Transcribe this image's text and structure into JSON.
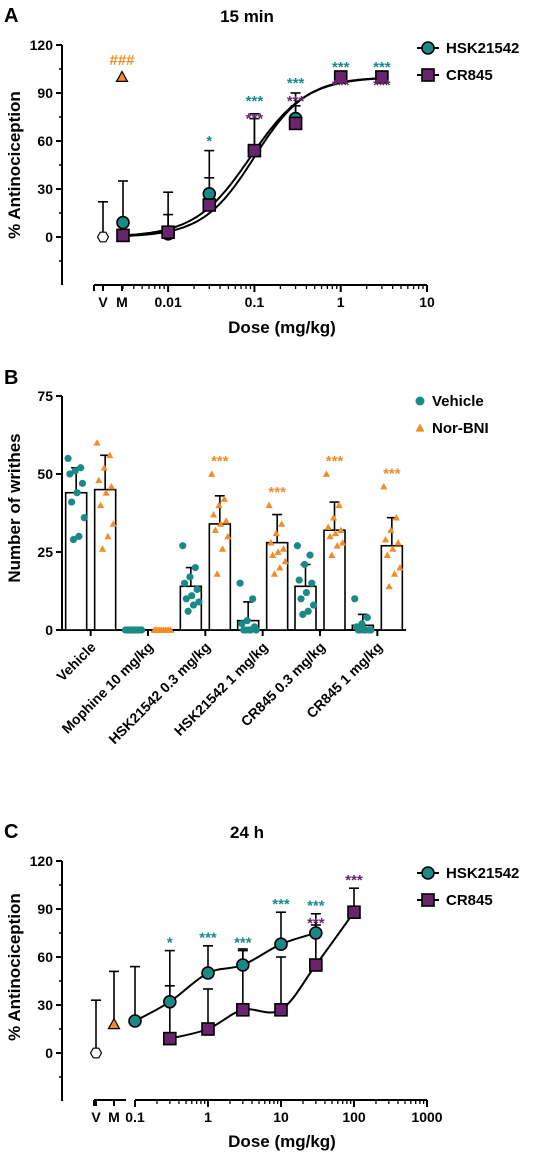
{
  "colors": {
    "teal": "#1b8a86",
    "purple": "#6a246e",
    "orange": "#f28c28",
    "black": "#000000"
  },
  "chart_data": [
    {
      "panel": "A",
      "title": "15 min",
      "type": "scatter",
      "xlabel": "Dose (mg/kg)",
      "ylabel": "% Antinociception",
      "x_scale": "log",
      "xlim": [
        0.003,
        10
      ],
      "xticks": [
        "0.01",
        "0.1",
        "1",
        "10"
      ],
      "ylim": [
        -30,
        120
      ],
      "yticks": [
        "0",
        "30",
        "60",
        "90",
        "120"
      ],
      "control_labels": [
        "V",
        "M"
      ],
      "legend_position": "top-right",
      "controls": [
        {
          "label": "V",
          "value": 0,
          "error_up": 22,
          "marker": "hexagon",
          "color": "white"
        },
        {
          "label": "M",
          "value": 100,
          "marker": "triangle",
          "color": "orange",
          "annotation": "###"
        }
      ],
      "series": [
        {
          "name": "HSK21542",
          "marker": "circle",
          "color": "teal",
          "x": [
            0.003,
            0.01,
            0.03,
            0.1,
            0.3,
            1,
            3
          ],
          "y": [
            9,
            2,
            27,
            54,
            74,
            100,
            100
          ],
          "error_up": [
            35,
            28,
            54,
            77,
            90,
            100,
            100
          ]
        },
        {
          "name": "CR845",
          "marker": "square",
          "color": "purple",
          "x": [
            0.003,
            0.01,
            0.03,
            0.1,
            0.3,
            1,
            3
          ],
          "y": [
            1,
            3,
            20,
            54,
            71,
            100,
            100
          ],
          "error_up": [
            1,
            14,
            37,
            74,
            82,
            100,
            100
          ]
        }
      ],
      "fits": [
        {
          "ec50": 0.09,
          "hill": 1.35
        },
        {
          "ec50": 0.1,
          "hill": 1.45
        }
      ],
      "annotations": [
        {
          "x": 0.03,
          "y": 57,
          "text": "*",
          "color": "teal"
        },
        {
          "x": 0.1,
          "y": 82,
          "text": "***",
          "color": "teal"
        },
        {
          "x": 0.1,
          "y": 71,
          "text": "***",
          "color": "purple"
        },
        {
          "x": 0.3,
          "y": 93,
          "text": "***",
          "color": "teal"
        },
        {
          "x": 0.3,
          "y": 82,
          "text": "***",
          "color": "purple"
        },
        {
          "x": 1,
          "y": 103,
          "text": "***",
          "color": "teal"
        },
        {
          "x": 1,
          "y": 92,
          "text": "***",
          "color": "purple"
        },
        {
          "x": 3,
          "y": 103,
          "text": "***",
          "color": "teal"
        },
        {
          "x": 3,
          "y": 92,
          "text": "***",
          "color": "purple"
        }
      ]
    },
    {
      "panel": "B",
      "type": "bar",
      "title": "",
      "xlabel": "",
      "ylabel": "Number of writhes",
      "ylim": [
        0,
        75
      ],
      "yticks": [
        "0",
        "25",
        "50",
        "75"
      ],
      "categories": [
        "Vehicle",
        "Mophine 10 mg/kg",
        "HSK21542 0.3 mg/kg",
        "HSK21542 1 mg/kg",
        "CR845 0.3 mg/kg",
        "CR845 1 mg/kg"
      ],
      "legend_position": "top-right",
      "series": [
        {
          "name": "Vehicle",
          "marker": "circle",
          "color": "teal",
          "values": [
            44,
            0,
            14,
            3,
            14,
            1.5
          ],
          "sd": [
            8,
            0,
            6,
            6,
            7,
            3.5
          ],
          "points": [
            [
              55,
              52,
              51,
              50,
              47,
              44,
              41,
              36,
              30,
              29
            ],
            [
              0,
              0,
              0,
              0,
              0,
              0,
              0,
              0,
              0,
              0
            ],
            [
              27,
              20,
              17,
              15,
              13,
              11,
              10,
              9,
              8,
              6
            ],
            [
              15,
              10,
              3,
              2,
              1,
              0,
              0,
              0,
              0,
              0
            ],
            [
              27,
              24,
              21,
              16,
              15,
              12,
              10,
              8,
              6,
              5
            ],
            [
              10,
              4,
              2,
              1,
              0,
              0,
              0,
              0,
              0,
              0
            ]
          ]
        },
        {
          "name": "Nor-BNI",
          "marker": "triangle",
          "color": "orange",
          "values": [
            45,
            0,
            34,
            28,
            32,
            27
          ],
          "sd": [
            11,
            0,
            9,
            9,
            9,
            9
          ],
          "points": [
            [
              60,
              56,
              52,
              48,
              46,
              44,
              40,
              34,
              30,
              26
            ],
            [
              0,
              0,
              0,
              0,
              0,
              0,
              0,
              0,
              0,
              0
            ],
            [
              50,
              42,
              40,
              37,
              35,
              34,
              32,
              30,
              26,
              18
            ],
            [
              40,
              34,
              31,
              28,
              26,
              25,
              24,
              22,
              20,
              18
            ],
            [
              50,
              40,
              36,
              33,
              32,
              31,
              30,
              28,
              27,
              24
            ],
            [
              46,
              36,
              32,
              29,
              28,
              26,
              24,
              20,
              18,
              14
            ]
          ]
        }
      ],
      "annotations": [
        {
          "category": 2,
          "text": "***",
          "color": "orange"
        },
        {
          "category": 3,
          "text": "***",
          "color": "orange"
        },
        {
          "category": 4,
          "text": "***",
          "color": "orange"
        },
        {
          "category": 5,
          "text": "***",
          "color": "orange"
        }
      ]
    },
    {
      "panel": "C",
      "title": "24 h",
      "type": "scatter",
      "xlabel": "Dose (mg/kg)",
      "ylabel": "% Antinociception",
      "x_scale": "log",
      "xlim": [
        0.1,
        1000
      ],
      "xticks": [
        "0.1",
        "1",
        "10",
        "100",
        "1000"
      ],
      "ylim": [
        -30,
        120
      ],
      "yticks": [
        "0",
        "30",
        "60",
        "90",
        "120"
      ],
      "control_labels": [
        "V",
        "M"
      ],
      "legend_position": "top-right",
      "controls": [
        {
          "label": "V",
          "value": 0,
          "error_up": 33,
          "marker": "hexagon",
          "color": "white"
        },
        {
          "label": "M",
          "value": 18,
          "error_up": 51,
          "marker": "triangle",
          "color": "orange"
        }
      ],
      "series": [
        {
          "name": "HSK21542",
          "marker": "circle",
          "color": "teal",
          "x": [
            0.1,
            0.3,
            1,
            3,
            10,
            30
          ],
          "y": [
            20,
            32,
            50,
            55,
            68,
            75
          ],
          "error_up": [
            54,
            64,
            67,
            64,
            88,
            87
          ],
          "error_down": [
            20,
            32,
            50,
            55,
            68,
            75
          ]
        },
        {
          "name": "CR845",
          "marker": "square",
          "color": "purple",
          "x": [
            0.3,
            1,
            3,
            10,
            30,
            100
          ],
          "y": [
            9,
            15,
            27,
            27,
            55,
            88
          ],
          "error_up": [
            42,
            40,
            65,
            60,
            80,
            103
          ]
        }
      ],
      "annotations": [
        {
          "x": 0.3,
          "y": 66,
          "text": "*",
          "color": "teal"
        },
        {
          "x": 1,
          "y": 69,
          "text": "***",
          "color": "teal"
        },
        {
          "x": 3,
          "y": 66,
          "text": "***",
          "color": "teal"
        },
        {
          "x": 10,
          "y": 90,
          "text": "***",
          "color": "teal"
        },
        {
          "x": 30,
          "y": 89,
          "text": "***",
          "color": "teal"
        },
        {
          "x": 30,
          "y": 78,
          "text": "***",
          "color": "purple"
        },
        {
          "x": 100,
          "y": 105,
          "text": "***",
          "color": "purple"
        }
      ]
    }
  ]
}
